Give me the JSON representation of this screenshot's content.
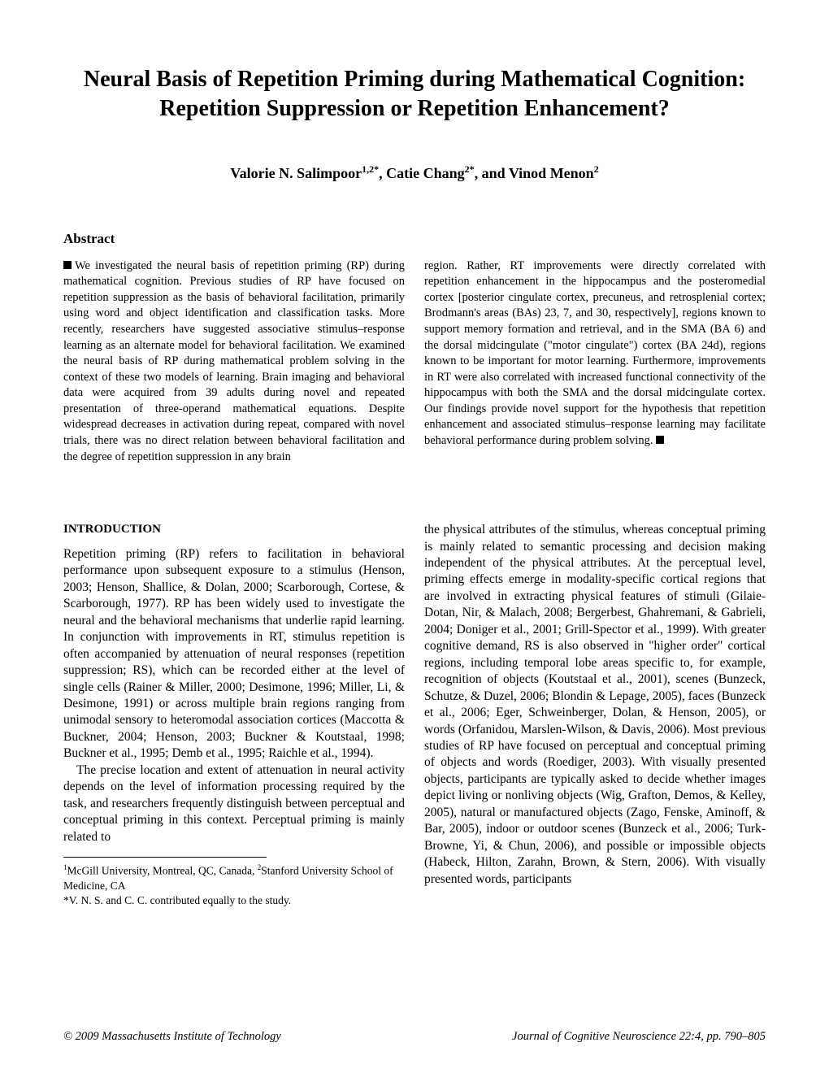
{
  "title": "Neural Basis of Repetition Priming during Mathematical Cognition: Repetition Suppression or Repetition Enhancement?",
  "authors_html": "Valorie N. Salimpoor<sup>1,2*</sup>, Catie Chang<sup>2*</sup>, and Vinod Menon<sup>2</sup>",
  "abstract_heading": "Abstract",
  "abstract_left": "We investigated the neural basis of repetition priming (RP) during mathematical cognition. Previous studies of RP have focused on repetition suppression as the basis of behavioral facilitation, primarily using word and object identification and classification tasks. More recently, researchers have suggested associative stimulus–response learning as an alternate model for behavioral facilitation. We examined the neural basis of RP during mathematical problem solving in the context of these two models of learning. Brain imaging and behavioral data were acquired from 39 adults during novel and repeated presentation of three-operand mathematical equations. Despite widespread decreases in activation during repeat, compared with novel trials, there was no direct relation between behavioral facilitation and the degree of repetition suppression in any brain",
  "abstract_right": "region. Rather, RT improvements were directly correlated with repetition enhancement in the hippocampus and the posteromedial cortex [posterior cingulate cortex, precuneus, and retrosplenial cortex; Brodmann's areas (BAs) 23, 7, and 30, respectively], regions known to support memory formation and retrieval, and in the SMA (BA 6) and the dorsal midcingulate (\"motor cingulate\") cortex (BA 24d), regions known to be important for motor learning. Furthermore, improvements in RT were also correlated with increased functional connectivity of the hippocampus with both the SMA and the dorsal midcingulate cortex. Our findings provide novel support for the hypothesis that repetition enhancement and associated stimulus–response learning may facilitate behavioral performance during problem solving.",
  "intro_heading": "INTRODUCTION",
  "intro_left_p1": "Repetition priming (RP) refers to facilitation in behavioral performance upon subsequent exposure to a stimulus (Henson, 2003; Henson, Shallice, & Dolan, 2000; Scarborough, Cortese, & Scarborough, 1977). RP has been widely used to investigate the neural and the behavioral mechanisms that underlie rapid learning. In conjunction with improvements in RT, stimulus repetition is often accompanied by attenuation of neural responses (repetition suppression; RS), which can be recorded either at the level of single cells (Rainer & Miller, 2000; Desimone, 1996; Miller, Li, & Desimone, 1991) or across multiple brain regions ranging from unimodal sensory to heteromodal association cortices (Maccotta & Buckner, 2004; Henson, 2003; Buckner & Koutstaal, 1998; Buckner et al., 1995; Demb et al., 1995; Raichle et al., 1994).",
  "intro_left_p2": "The precise location and extent of attenuation in neural activity depends on the level of information processing required by the task, and researchers frequently distinguish between perceptual and conceptual priming in this context. Perceptual priming is mainly related to",
  "intro_right": "the physical attributes of the stimulus, whereas conceptual priming is mainly related to semantic processing and decision making independent of the physical attributes. At the perceptual level, priming effects emerge in modality-specific cortical regions that are involved in extracting physical features of stimuli (Gilaie-Dotan, Nir, & Malach, 2008; Bergerbest, Ghahremani, & Gabrieli, 2004; Doniger et al., 2001; Grill-Spector et al., 1999). With greater cognitive demand, RS is also observed in \"higher order\" cortical regions, including temporal lobe areas specific to, for example, recognition of objects (Koutstaal et al., 2001), scenes (Bunzeck, Schutze, & Duzel, 2006; Blondin & Lepage, 2005), faces (Bunzeck et al., 2006; Eger, Schweinberger, Dolan, & Henson, 2005), or words (Orfanidou, Marslen-Wilson, & Davis, 2006). Most previous studies of RP have focused on perceptual and conceptual priming of objects and words (Roediger, 2003). With visually presented objects, participants are typically asked to decide whether images depict living or nonliving objects (Wig, Grafton, Demos, & Kelley, 2005), natural or manufactured objects (Zago, Fenske, Aminoff, & Bar, 2005), indoor or outdoor scenes (Bunzeck et al., 2006; Turk-Browne, Yi, & Chun, 2006), and possible or impossible objects (Habeck, Hilton, Zarahn, Brown, & Stern, 2006). With visually presented words, participants",
  "footnote1_html": "<sup>1</sup>McGill University, Montreal, QC, Canada, <sup>2</sup>Stanford University School of Medicine, CA",
  "footnote2": "*V. N. S. and C. C. contributed equally to the study.",
  "footer_left": "© 2009 Massachusetts Institute of Technology",
  "footer_right": "Journal of Cognitive Neuroscience 22:4, pp. 790–805"
}
